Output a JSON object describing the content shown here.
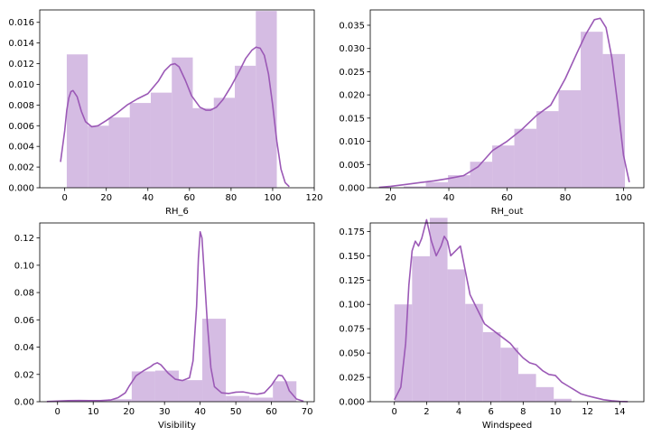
{
  "style": {
    "bar_color": "#d5bce3",
    "line_color": "#9b59b6",
    "axis_color": "#000000"
  },
  "chart_data": [
    {
      "type": "bar",
      "subtype": "histogram-with-kde",
      "xlabel": "RH_6",
      "xlim": [
        -12,
        120
      ],
      "ylim": [
        0,
        0.0172
      ],
      "xticks": [
        0,
        20,
        40,
        60,
        80,
        100,
        120
      ],
      "yticks": [
        0.0,
        0.002,
        0.004,
        0.006,
        0.008,
        0.01,
        0.012,
        0.014,
        0.016
      ],
      "ytick_labels": [
        "0.000",
        "0.002",
        "0.004",
        "0.006",
        "0.008",
        "0.010",
        "0.012",
        "0.014",
        "0.016"
      ],
      "bin_edges": [
        1,
        11.1,
        21.2,
        31.3,
        41.4,
        51.5,
        61.6,
        71.7,
        81.8,
        91.9,
        102
      ],
      "bin_values": [
        0.0129,
        0.006,
        0.0068,
        0.0082,
        0.0092,
        0.0126,
        0.0077,
        0.0087,
        0.0118,
        0.0171
      ],
      "kde": {
        "x": [
          -2,
          0,
          1,
          2,
          3,
          4,
          6,
          8,
          10,
          13,
          16,
          20,
          25,
          30,
          35,
          40,
          45,
          48,
          51,
          53,
          55,
          58,
          61,
          65,
          68,
          70,
          73,
          76,
          80,
          84,
          87,
          90,
          92,
          94,
          96,
          98,
          100,
          102,
          104,
          106,
          108
        ],
        "y": [
          0.0025,
          0.0055,
          0.0075,
          0.0087,
          0.0093,
          0.0094,
          0.0088,
          0.0074,
          0.0064,
          0.0059,
          0.006,
          0.0065,
          0.0072,
          0.008,
          0.0086,
          0.0091,
          0.0103,
          0.0113,
          0.0119,
          0.012,
          0.0117,
          0.0104,
          0.0089,
          0.0078,
          0.0075,
          0.0075,
          0.0078,
          0.0085,
          0.0098,
          0.0113,
          0.0125,
          0.0133,
          0.0136,
          0.0135,
          0.0128,
          0.011,
          0.008,
          0.0045,
          0.0018,
          0.0005,
          0.0001
        ]
      }
    },
    {
      "type": "bar",
      "subtype": "histogram-with-kde",
      "xlabel": "RH_out",
      "xlim": [
        13,
        107
      ],
      "ylim": [
        0,
        0.0383
      ],
      "xticks": [
        20,
        40,
        60,
        80,
        100
      ],
      "yticks": [
        0.0,
        0.005,
        0.01,
        0.015,
        0.02,
        0.025,
        0.03,
        0.035
      ],
      "ytick_labels": [
        "0.000",
        "0.005",
        "0.010",
        "0.015",
        "0.020",
        "0.025",
        "0.030",
        "0.035"
      ],
      "bin_edges": [
        24.5,
        32.1,
        39.7,
        47.3,
        54.9,
        62.5,
        70.1,
        77.7,
        85.3,
        92.9,
        100.5
      ],
      "bin_values": [
        0.0003,
        0.0012,
        0.0027,
        0.0056,
        0.0091,
        0.0127,
        0.0165,
        0.021,
        0.0336,
        0.0288
      ],
      "kde": {
        "x": [
          16,
          20,
          25,
          30,
          35,
          40,
          45,
          50,
          55,
          60,
          65,
          70,
          75,
          80,
          84,
          87,
          90,
          92,
          94,
          96,
          98,
          100,
          102
        ],
        "y": [
          0.0001,
          0.0003,
          0.0007,
          0.0011,
          0.0015,
          0.002,
          0.0026,
          0.0045,
          0.008,
          0.01,
          0.0125,
          0.0155,
          0.0178,
          0.0235,
          0.029,
          0.033,
          0.0362,
          0.0365,
          0.0345,
          0.028,
          0.018,
          0.007,
          0.0012
        ]
      }
    },
    {
      "type": "bar",
      "subtype": "histogram-with-kde",
      "xlabel": "Visibility",
      "xlim": [
        -5,
        72
      ],
      "ylim": [
        0,
        0.131
      ],
      "xticks": [
        0,
        10,
        20,
        30,
        40,
        50,
        60,
        70
      ],
      "yticks": [
        0.0,
        0.02,
        0.04,
        0.06,
        0.08,
        0.1,
        0.12
      ],
      "ytick_labels": [
        "0.00",
        "0.02",
        "0.04",
        "0.06",
        "0.08",
        "0.10",
        "0.12"
      ],
      "bin_edges": [
        1,
        7.6,
        14.2,
        20.8,
        27.4,
        34.0,
        40.6,
        47.2,
        53.8,
        60.4,
        67.0
      ],
      "bin_values": [
        0.0006,
        0.0008,
        0.0018,
        0.0222,
        0.0228,
        0.0158,
        0.0608,
        0.0042,
        0.003,
        0.015
      ],
      "kde": {
        "x": [
          -3,
          0,
          3,
          6,
          9,
          12,
          15,
          17,
          19,
          20,
          21,
          22,
          24,
          26,
          27,
          28,
          29,
          31,
          33,
          35,
          37,
          38,
          39,
          39.5,
          40,
          40.5,
          41,
          42,
          43,
          44,
          46,
          48,
          50,
          52,
          54,
          56,
          58,
          60,
          61,
          62,
          63,
          64,
          65,
          67,
          69
        ],
        "y": [
          0.0001,
          0.0005,
          0.0008,
          0.0009,
          0.0008,
          0.0008,
          0.0013,
          0.003,
          0.0065,
          0.011,
          0.015,
          0.019,
          0.0225,
          0.0255,
          0.0275,
          0.0285,
          0.027,
          0.021,
          0.0165,
          0.0155,
          0.0175,
          0.03,
          0.07,
          0.105,
          0.1245,
          0.12,
          0.1,
          0.058,
          0.025,
          0.011,
          0.0065,
          0.006,
          0.007,
          0.0072,
          0.0062,
          0.0055,
          0.0065,
          0.012,
          0.016,
          0.0195,
          0.019,
          0.015,
          0.008,
          0.002,
          0.0003
        ]
      }
    },
    {
      "type": "bar",
      "subtype": "histogram-with-kde",
      "xlabel": "Windspeed",
      "xlim": [
        -1.5,
        15.5
      ],
      "ylim": [
        0,
        0.1837
      ],
      "xticks": [
        0,
        2,
        4,
        6,
        8,
        10,
        12,
        14
      ],
      "yticks": [
        0.0,
        0.025,
        0.05,
        0.075,
        0.1,
        0.125,
        0.15,
        0.175
      ],
      "ytick_labels": [
        "0.000",
        "0.025",
        "0.050",
        "0.075",
        "0.100",
        "0.125",
        "0.150",
        "0.175"
      ],
      "bin_edges": [
        0,
        1.1,
        2.2,
        3.3,
        4.4,
        5.5,
        6.6,
        7.7,
        8.8,
        9.9,
        11.0
      ],
      "bin_values": [
        0.1,
        0.1495,
        0.189,
        0.136,
        0.1005,
        0.0715,
        0.0555,
        0.0285,
        0.015,
        0.003
      ],
      "kde": {
        "x": [
          0,
          0.4,
          0.7,
          0.9,
          1.1,
          1.3,
          1.5,
          1.7,
          2.0,
          2.3,
          2.6,
          2.9,
          3.1,
          3.3,
          3.5,
          3.8,
          4.1,
          4.4,
          4.7,
          5.0,
          5.3,
          5.6,
          6.0,
          6.4,
          6.8,
          7.2,
          7.6,
          8.0,
          8.4,
          8.8,
          9.2,
          9.6,
          10.0,
          10.4,
          10.8,
          11.2,
          11.6,
          12.0,
          12.5,
          13.0,
          13.5,
          14.0,
          14.5
        ],
        "y": [
          0.002,
          0.015,
          0.06,
          0.12,
          0.155,
          0.165,
          0.16,
          0.168,
          0.187,
          0.165,
          0.15,
          0.16,
          0.17,
          0.165,
          0.15,
          0.155,
          0.16,
          0.135,
          0.11,
          0.1,
          0.09,
          0.08,
          0.075,
          0.07,
          0.065,
          0.06,
          0.052,
          0.045,
          0.04,
          0.038,
          0.032,
          0.028,
          0.027,
          0.02,
          0.016,
          0.012,
          0.008,
          0.006,
          0.004,
          0.002,
          0.001,
          0.0003,
          0.0001
        ]
      }
    }
  ]
}
